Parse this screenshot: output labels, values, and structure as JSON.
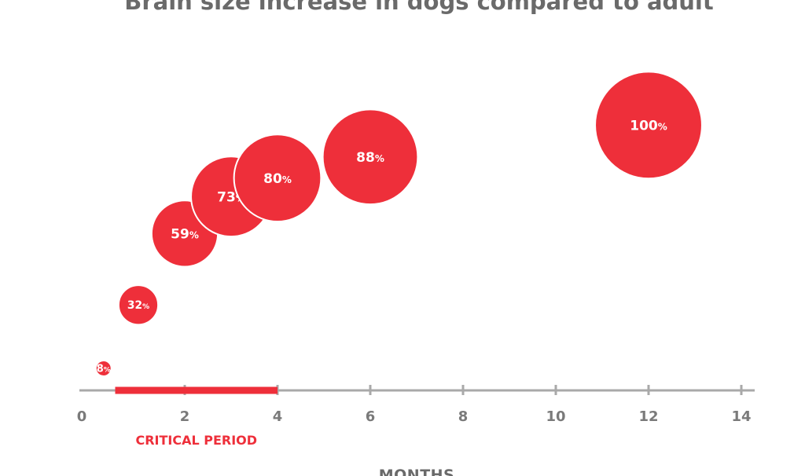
{
  "chart_data": {
    "type": "scatter",
    "title": "Brain size increase in dogs compared to adult",
    "xlabel": "MONTHS",
    "ylabel": "",
    "xlim": [
      0,
      14
    ],
    "xticks": [
      "0",
      "2",
      "4",
      "6",
      "8",
      "10",
      "12",
      "14"
    ],
    "grid": false,
    "points": [
      {
        "x": 0.25,
        "value": 8,
        "label": "8",
        "unit": "%"
      },
      {
        "x": 1,
        "value": 32,
        "label": "32",
        "unit": "%"
      },
      {
        "x": 2,
        "value": 59,
        "label": "59",
        "unit": "%"
      },
      {
        "x": 3,
        "value": 73,
        "label": "73",
        "unit": "%"
      },
      {
        "x": 4,
        "value": 80,
        "label": "80",
        "unit": "%"
      },
      {
        "x": 6,
        "value": 88,
        "label": "88",
        "unit": "%"
      },
      {
        "x": 12,
        "value": 100,
        "label": "100",
        "unit": "%"
      }
    ],
    "annotation": {
      "label": "CRITICAL PERIOD",
      "x_range": [
        0.5,
        4
      ]
    },
    "colors": {
      "bubble": "#ee2f3a",
      "axis": "#a9a9a9",
      "annotation": "#ee2f3a"
    }
  }
}
